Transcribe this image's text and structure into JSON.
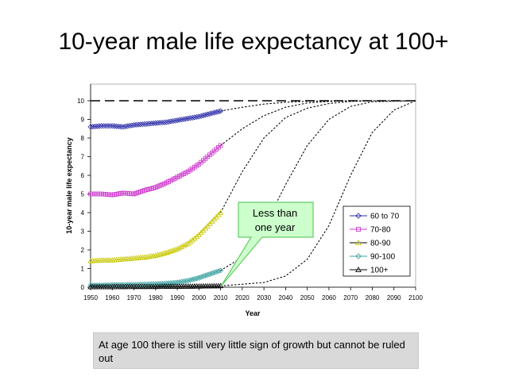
{
  "slide": {
    "title": "10-year male life expectancy at 100+",
    "note": "At age 100 there is still very little sign of growth but cannot be ruled out"
  },
  "callout": {
    "line1": "Less than",
    "line2": "one year"
  },
  "colors": {
    "callout_fill": "#ccffcc",
    "callout_border": "#66cc66",
    "note_fill": "#d9d9d9"
  },
  "chart_data": {
    "type": "line",
    "title": "",
    "xlabel": "Year",
    "ylabel": "10-year male life expectancy",
    "xlim": [
      1950,
      2100
    ],
    "ylim": [
      0,
      10
    ],
    "xticks": [
      1950,
      1960,
      1970,
      1980,
      1990,
      2000,
      2010,
      2020,
      2030,
      2040,
      2050,
      2060,
      2070,
      2080,
      2090,
      2100
    ],
    "yticks": [
      0,
      1,
      2,
      3,
      4,
      5,
      6,
      7,
      8,
      9,
      10
    ],
    "grid": false,
    "legend_position": "right",
    "reference_line": {
      "y": 10,
      "style": "dashed"
    },
    "series": [
      {
        "name": "60 to 70",
        "color": "#2a2aa8",
        "marker": "diamond",
        "observed": [
          [
            1950,
            8.6
          ],
          [
            1955,
            8.65
          ],
          [
            1960,
            8.65
          ],
          [
            1965,
            8.6
          ],
          [
            1970,
            8.7
          ],
          [
            1975,
            8.75
          ],
          [
            1980,
            8.8
          ],
          [
            1985,
            8.85
          ],
          [
            1990,
            8.95
          ],
          [
            1995,
            9.05
          ],
          [
            2000,
            9.15
          ],
          [
            2005,
            9.3
          ],
          [
            2010,
            9.45
          ]
        ],
        "projection": [
          [
            2010,
            9.45
          ],
          [
            2020,
            9.65
          ],
          [
            2030,
            9.82
          ],
          [
            2040,
            9.92
          ],
          [
            2050,
            9.97
          ],
          [
            2060,
            9.99
          ],
          [
            2070,
            10.0
          ],
          [
            2100,
            10.0
          ]
        ]
      },
      {
        "name": "70-80",
        "color": "#cc33cc",
        "marker": "square",
        "observed": [
          [
            1950,
            5.0
          ],
          [
            1955,
            5.0
          ],
          [
            1960,
            4.95
          ],
          [
            1965,
            5.05
          ],
          [
            1970,
            5.0
          ],
          [
            1975,
            5.2
          ],
          [
            1980,
            5.35
          ],
          [
            1985,
            5.6
          ],
          [
            1990,
            5.9
          ],
          [
            1995,
            6.2
          ],
          [
            2000,
            6.6
          ],
          [
            2005,
            7.1
          ],
          [
            2010,
            7.6
          ]
        ],
        "projection": [
          [
            2010,
            7.6
          ],
          [
            2020,
            8.5
          ],
          [
            2030,
            9.2
          ],
          [
            2040,
            9.65
          ],
          [
            2050,
            9.88
          ],
          [
            2060,
            9.96
          ],
          [
            2070,
            10.0
          ],
          [
            2100,
            10.0
          ]
        ]
      },
      {
        "name": "80-90",
        "color": "#c8c800",
        "marker": "triangle",
        "observed": [
          [
            1950,
            1.4
          ],
          [
            1955,
            1.45
          ],
          [
            1960,
            1.45
          ],
          [
            1965,
            1.5
          ],
          [
            1970,
            1.55
          ],
          [
            1975,
            1.6
          ],
          [
            1980,
            1.7
          ],
          [
            1985,
            1.85
          ],
          [
            1990,
            2.05
          ],
          [
            1995,
            2.35
          ],
          [
            2000,
            2.8
          ],
          [
            2005,
            3.4
          ],
          [
            2010,
            4.0
          ]
        ],
        "projection": [
          [
            2010,
            4.0
          ],
          [
            2020,
            6.2
          ],
          [
            2030,
            8.0
          ],
          [
            2040,
            9.1
          ],
          [
            2050,
            9.6
          ],
          [
            2060,
            9.85
          ],
          [
            2070,
            9.96
          ],
          [
            2080,
            10.0
          ],
          [
            2100,
            10.0
          ]
        ]
      },
      {
        "name": "90-100",
        "color": "#3aa0a0",
        "marker": "diamond",
        "observed": [
          [
            1950,
            0.1
          ],
          [
            1955,
            0.1
          ],
          [
            1960,
            0.12
          ],
          [
            1965,
            0.12
          ],
          [
            1970,
            0.13
          ],
          [
            1975,
            0.15
          ],
          [
            1980,
            0.17
          ],
          [
            1985,
            0.2
          ],
          [
            1990,
            0.25
          ],
          [
            1995,
            0.35
          ],
          [
            2000,
            0.5
          ],
          [
            2005,
            0.7
          ],
          [
            2010,
            0.9
          ]
        ],
        "projection": [
          [
            2010,
            0.9
          ],
          [
            2020,
            1.6
          ],
          [
            2030,
            3.2
          ],
          [
            2040,
            5.5
          ],
          [
            2050,
            7.6
          ],
          [
            2060,
            9.0
          ],
          [
            2070,
            9.7
          ],
          [
            2080,
            9.95
          ],
          [
            2100,
            10.0
          ]
        ]
      },
      {
        "name": "100+",
        "color": "#000000",
        "marker": "triangle",
        "observed": [
          [
            1950,
            0.02
          ],
          [
            1960,
            0.02
          ],
          [
            1970,
            0.03
          ],
          [
            1980,
            0.03
          ],
          [
            1990,
            0.04
          ],
          [
            2000,
            0.05
          ],
          [
            2010,
            0.07
          ]
        ],
        "projection": [
          [
            2010,
            0.07
          ],
          [
            2030,
            0.25
          ],
          [
            2040,
            0.6
          ],
          [
            2050,
            1.5
          ],
          [
            2060,
            3.3
          ],
          [
            2070,
            6.0
          ],
          [
            2080,
            8.3
          ],
          [
            2090,
            9.5
          ],
          [
            2100,
            10.0
          ]
        ]
      }
    ]
  }
}
